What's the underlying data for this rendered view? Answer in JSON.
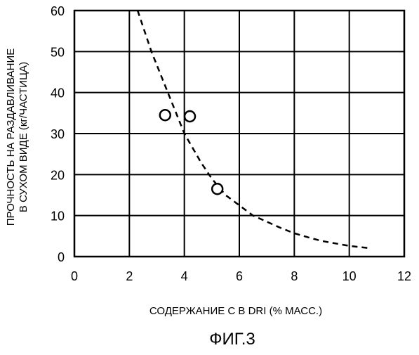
{
  "chart_data": {
    "type": "scatter",
    "title": "",
    "xlabel": "СОДЕРЖАНИЕ С В DRI (% МАСС.)",
    "ylabel_line1": "ПРОЧНОСТЬ НА РАЗДАВЛИВАНИЕ",
    "ylabel_line2": "В СУХОМ ВИДЕ (кг/ЧАСТИЦА)",
    "xlim": [
      0,
      12
    ],
    "ylim": [
      0,
      60
    ],
    "x_ticks": [
      "0",
      "2",
      "4",
      "6",
      "8",
      "10",
      "12"
    ],
    "y_ticks": [
      "0",
      "10",
      "20",
      "30",
      "40",
      "50",
      "60"
    ],
    "grid": true,
    "series": [
      {
        "marker": "open-circle",
        "points": [
          {
            "x": 3.3,
            "y": 34.5
          },
          {
            "x": 4.2,
            "y": 34.2
          },
          {
            "x": 5.2,
            "y": 16.5
          }
        ]
      },
      {
        "line_style": "dashed",
        "points": [
          {
            "x": 2.3,
            "y": 60
          },
          {
            "x": 2.8,
            "y": 50
          },
          {
            "x": 3.4,
            "y": 40
          },
          {
            "x": 4.0,
            "y": 30
          },
          {
            "x": 4.6,
            "y": 23
          },
          {
            "x": 5.0,
            "y": 19
          },
          {
            "x": 5.5,
            "y": 15
          },
          {
            "x": 6.0,
            "y": 12.5
          },
          {
            "x": 6.5,
            "y": 10
          },
          {
            "x": 7.0,
            "y": 8.5
          },
          {
            "x": 7.5,
            "y": 7
          },
          {
            "x": 8.0,
            "y": 5.7
          },
          {
            "x": 8.5,
            "y": 4.7
          },
          {
            "x": 9.0,
            "y": 3.8
          },
          {
            "x": 9.5,
            "y": 3.2
          },
          {
            "x": 10.0,
            "y": 2.6
          },
          {
            "x": 10.8,
            "y": 2
          }
        ]
      }
    ]
  },
  "figure_label": "ФИГ.3",
  "colors": {
    "ink": "#000000",
    "background": "#ffffff"
  }
}
